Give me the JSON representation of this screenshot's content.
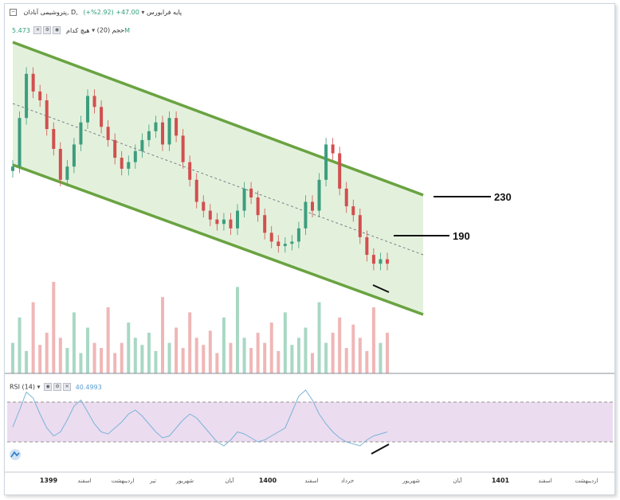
{
  "header": {
    "symbol_title": "پتروشیمی آبادان, D, پایه فرابورس",
    "price_change": "47.00+ (2.92%+)",
    "volume_indicator": "حجم (20)",
    "volume_label": "هیچ کدام",
    "volume_value": "5.473M",
    "rsi_indicator": "RSI (14)",
    "rsi_value": "40.4993"
  },
  "colors": {
    "channel_fill": "#e3f1dc",
    "channel_line": "#6aa341",
    "mid_line": "#7a7f8a",
    "candle_up": "#3d9d7e",
    "candle_down": "#d24f4f",
    "rsi_line": "#79b4d8",
    "rsi_band": "#ecdcf0"
  },
  "chart_data": [
    {
      "type": "candlestick",
      "price_annotations": [
        {
          "label": "230"
        },
        {
          "label": "190"
        }
      ],
      "shapes": [
        "descending-channel",
        "channel-midline",
        "bullish-divergence-line"
      ],
      "close_series": [
        118,
        140,
        160,
        152,
        148,
        135,
        126,
        112,
        118,
        128,
        138,
        150,
        145,
        136,
        130,
        122,
        117,
        120,
        125,
        130,
        134,
        138,
        128,
        140,
        132,
        120,
        112,
        102,
        98,
        94,
        92,
        94,
        90,
        98,
        108,
        104,
        96,
        88,
        84,
        82,
        83,
        84,
        90,
        102,
        98,
        112,
        128,
        124,
        108,
        100,
        96,
        86,
        78,
        74,
        76,
        74
      ],
      "x_axis_labels": [
        "1399",
        "اسفند",
        "اردیبهشت",
        "تیر",
        "شهریور",
        "آبان",
        "1400",
        "اسفند",
        "خرداد",
        "شهریور",
        "آبان",
        "1401",
        "اسفند",
        "اردیبهشت"
      ],
      "volume_series": [
        30,
        55,
        22,
        70,
        28,
        40,
        90,
        35,
        25,
        60,
        20,
        45,
        30,
        25,
        65,
        20,
        30,
        50,
        35,
        28,
        40,
        22,
        75,
        30,
        45,
        25,
        60,
        35,
        28,
        42,
        20,
        55,
        30,
        85,
        35,
        25,
        40,
        30,
        50,
        22,
        60,
        28,
        35,
        45,
        20,
        70,
        30,
        40,
        55,
        25,
        48,
        35,
        22,
        65,
        30,
        40
      ],
      "rsi": {
        "period": 14,
        "upper_level": 70,
        "lower_level": 30,
        "series": [
          45,
          62,
          80,
          74,
          58,
          44,
          36,
          40,
          52,
          66,
          72,
          60,
          48,
          40,
          38,
          44,
          50,
          58,
          62,
          56,
          48,
          40,
          34,
          36,
          44,
          52,
          58,
          54,
          46,
          38,
          30,
          26,
          32,
          40,
          38,
          34,
          30,
          32,
          36,
          40,
          44,
          60,
          76,
          82,
          72,
          58,
          48,
          40,
          34,
          30,
          28,
          26,
          32,
          36,
          38,
          40
        ]
      }
    }
  ]
}
